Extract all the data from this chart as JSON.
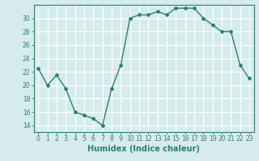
{
  "x": [
    0,
    1,
    2,
    3,
    4,
    5,
    6,
    7,
    8,
    9,
    10,
    11,
    12,
    13,
    14,
    15,
    16,
    17,
    18,
    19,
    20,
    21,
    22,
    23
  ],
  "y": [
    22.5,
    20.0,
    21.5,
    19.5,
    16.0,
    15.5,
    15.0,
    14.0,
    19.5,
    23.0,
    30.0,
    30.5,
    30.5,
    31.0,
    30.5,
    31.5,
    31.5,
    31.5,
    30.0,
    29.0,
    28.0,
    28.0,
    23.0,
    21.0
  ],
  "line_color": "#2e7d6e",
  "marker": "D",
  "markersize": 2,
  "linewidth": 1.0,
  "xlabel": "Humidex (Indice chaleur)",
  "xlim": [
    -0.5,
    23.5
  ],
  "ylim": [
    13,
    32
  ],
  "yticks": [
    14,
    16,
    18,
    20,
    22,
    24,
    26,
    28,
    30
  ],
  "xticks": [
    0,
    1,
    2,
    3,
    4,
    5,
    6,
    7,
    8,
    9,
    10,
    11,
    12,
    13,
    14,
    15,
    16,
    17,
    18,
    19,
    20,
    21,
    22,
    23
  ],
  "bg_color": "#d6ecec",
  "grid_color": "#ffffff",
  "tick_color": "#2e7d6e",
  "label_color": "#2e7d6e",
  "xlabel_fontsize": 7,
  "tick_fontsize": 5.5
}
